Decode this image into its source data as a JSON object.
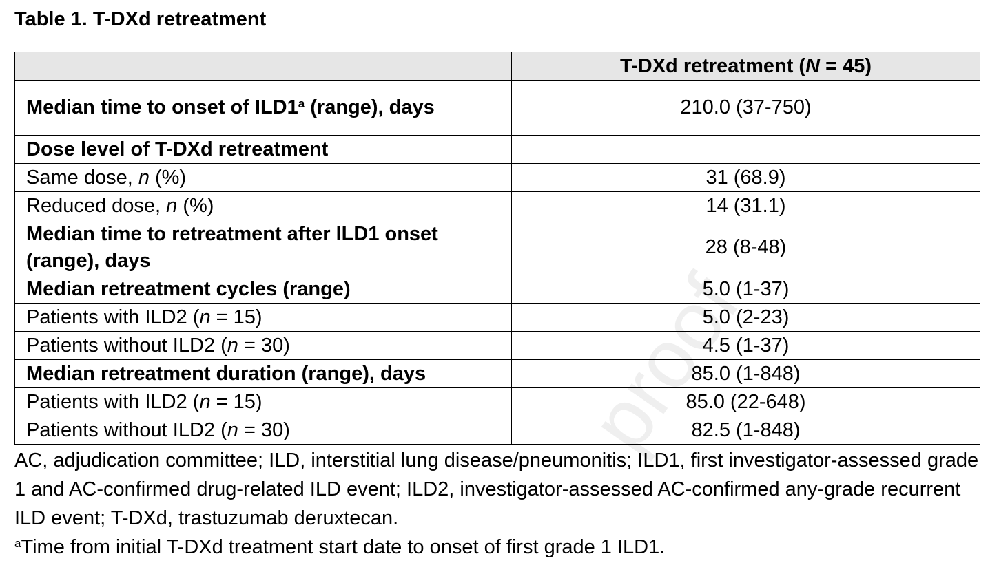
{
  "title": "Table 1. T-DXd retreatment",
  "watermark": "proof",
  "table": {
    "column_header": {
      "label": "",
      "value_prefix": "T-DXd retreatment (",
      "value_italic": "N",
      "value_suffix": " = 45)"
    },
    "rows": [
      {
        "label_pre": "Median time to onset of ILD1",
        "label_sup": "a",
        "label_post": " (range), days",
        "value": "210.0 (37-750)"
      },
      {
        "label": "Dose level of T-DXd retreatment",
        "value": ""
      },
      {
        "label_pre": "Same dose, ",
        "label_italic": "n",
        "label_post": " (%)",
        "value": "31 (68.9)"
      },
      {
        "label_pre": "Reduced dose, ",
        "label_italic": "n",
        "label_post": " (%)",
        "value": "14 (31.1)"
      },
      {
        "label": "Median time to retreatment after ILD1 onset (range), days",
        "value": "28 (8-48)"
      },
      {
        "label": "Median retreatment cycles (range)",
        "value": "5.0 (1-37)"
      },
      {
        "label_pre": "Patients with ILD2 (",
        "label_italic": "n",
        "label_post": " = 15)",
        "value": "5.0 (2-23)"
      },
      {
        "label_pre": "Patients without ILD2 (",
        "label_italic": "n",
        "label_post": " = 30)",
        "value": "4.5 (1-37)"
      },
      {
        "label": "Median retreatment duration (range), days",
        "value": "85.0 (1-848)"
      },
      {
        "label_pre": "Patients with ILD2 (",
        "label_italic": "n",
        "label_post": " = 15)",
        "value": "85.0 (22-648)"
      },
      {
        "label_pre": "Patients without ILD2 (",
        "label_italic": "n",
        "label_post": " = 30)",
        "value": "82.5 (1-848)"
      }
    ]
  },
  "footnotes": {
    "abbreviations": "AC, adjudication committee; ILD, interstitial lung disease/pneumonitis; ILD1, first investigator-assessed grade 1 and AC-confirmed drug-related ILD event; ILD2, investigator-assessed AC-confirmed any-grade recurrent ILD event; T-DXd, trastuzumab deruxtecan.",
    "note_marker": "a",
    "note_text": "Time from initial T-DXd treatment start date to onset of first grade 1 ILD1."
  }
}
